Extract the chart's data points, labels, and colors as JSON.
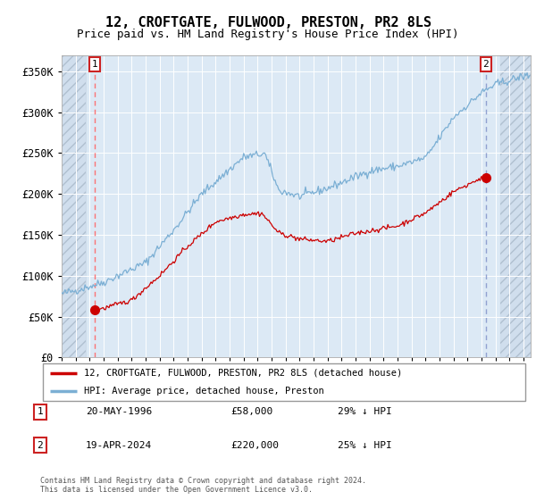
{
  "title": "12, CROFTGATE, FULWOOD, PRESTON, PR2 8LS",
  "subtitle": "Price paid vs. HM Land Registry's House Price Index (HPI)",
  "title_fontsize": 11,
  "subtitle_fontsize": 9,
  "ylim": [
    0,
    370000
  ],
  "yticks": [
    0,
    50000,
    100000,
    150000,
    200000,
    250000,
    300000,
    350000
  ],
  "ytick_labels": [
    "£0",
    "£50K",
    "£100K",
    "£150K",
    "£200K",
    "£250K",
    "£300K",
    "£350K"
  ],
  "plot_bg_color": "#dce9f5",
  "grid_color": "#ffffff",
  "sale1_date": 1996.38,
  "sale1_price": 58000,
  "sale2_date": 2024.3,
  "sale2_price": 220000,
  "legend_line1": "12, CROFTGATE, FULWOOD, PRESTON, PR2 8LS (detached house)",
  "legend_line2": "HPI: Average price, detached house, Preston",
  "annotation1_date": "20-MAY-1996",
  "annotation1_price": "£58,000",
  "annotation1_hpi": "29% ↓ HPI",
  "annotation2_date": "19-APR-2024",
  "annotation2_price": "£220,000",
  "annotation2_hpi": "25% ↓ HPI",
  "footer": "Contains HM Land Registry data © Crown copyright and database right 2024.\nThis data is licensed under the Open Government Licence v3.0.",
  "line_color_red": "#cc0000",
  "line_color_blue": "#7bafd4",
  "marker_color": "#cc0000",
  "dashed_line1_color": "#ff6666",
  "dashed_line2_color": "#8899cc",
  "box_color": "#cc2222"
}
